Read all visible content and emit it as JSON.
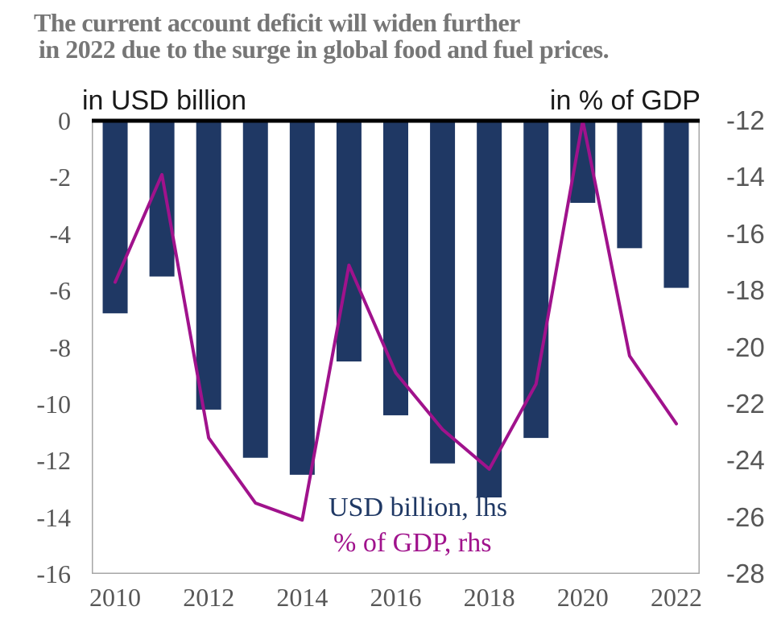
{
  "title": {
    "line1": "The current account deficit will widen further",
    "line2": "in 2022 due to the surge in global food and fuel prices."
  },
  "colors": {
    "bar": "#1f3864",
    "line": "#a0128c",
    "title_text": "#767676",
    "axis_header_text": "#1a1a1a",
    "tick_text": "#575757",
    "plot_frame": "#a6a6a6",
    "zero_line": "#000000",
    "background": "#ffffff"
  },
  "chart_data": {
    "type": "combo",
    "title": "The current account deficit will widen further in 2022 due to the surge in global food and fuel prices.",
    "categories": [
      "2010",
      "2011",
      "2012",
      "2013",
      "2014",
      "2015",
      "2016",
      "2017",
      "2018",
      "2019",
      "2020",
      "2021",
      "2022"
    ],
    "series": [
      {
        "name": "USD billion, lhs",
        "type": "bar",
        "axis": "left",
        "color": "#1f3864",
        "values": [
          -6.8,
          -5.5,
          -10.2,
          -11.9,
          -12.5,
          -8.5,
          -10.4,
          -12.1,
          -13.3,
          -11.2,
          -2.9,
          -4.5,
          -5.9
        ]
      },
      {
        "name": "% of GDP, rhs",
        "type": "line",
        "axis": "right",
        "color": "#a0128c",
        "values": [
          -17.7,
          -13.9,
          -23.2,
          -25.5,
          -26.1,
          -17.1,
          -20.9,
          -22.9,
          -24.3,
          -21.3,
          -12.0,
          -20.3,
          -22.7
        ]
      }
    ],
    "axes": {
      "left": {
        "title": "in USD billion",
        "min": -16,
        "max": 0,
        "ticks": [
          "0",
          "-2",
          "-4",
          "-6",
          "-8",
          "-10",
          "-12",
          "-14",
          "-16"
        ]
      },
      "right": {
        "title": "in % of GDP",
        "min": -28,
        "max": -12,
        "ticks": [
          "-12",
          "-14",
          "-16",
          "-18",
          "-20",
          "-22",
          "-24",
          "-26",
          "-28"
        ]
      },
      "x": {
        "ticks": [
          "2010",
          "2012",
          "2014",
          "2016",
          "2018",
          "2020",
          "2022"
        ],
        "tick_indices": [
          0,
          2,
          4,
          6,
          8,
          10,
          12
        ]
      }
    },
    "grid": false,
    "legend_position": "inside-bottom-center-stacked"
  }
}
